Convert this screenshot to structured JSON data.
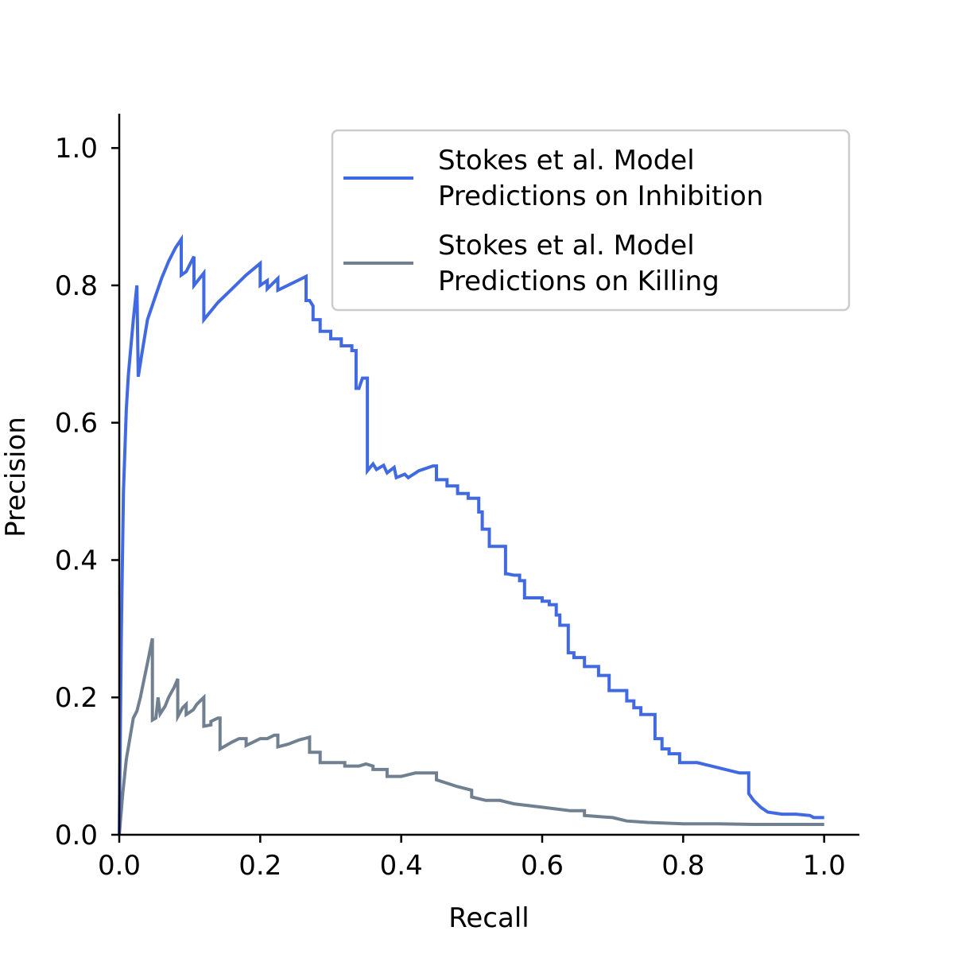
{
  "chart_data": {
    "type": "line",
    "title": "",
    "xlabel": "Recall",
    "ylabel": "Precision",
    "xlim": [
      0.0,
      1.05
    ],
    "ylim": [
      0.0,
      1.05
    ],
    "xticks": [
      "0.0",
      "0.2",
      "0.4",
      "0.6",
      "0.8",
      "1.0"
    ],
    "yticks": [
      "0.0",
      "0.2",
      "0.4",
      "0.6",
      "0.8",
      "1.0"
    ],
    "grid": false,
    "legend": "top-right",
    "series": [
      {
        "name": "Stokes et al. Model\nPredictions on Inhibition",
        "legend_lines": [
          "Stokes et al. Model",
          "Predictions on Inhibition"
        ],
        "color": "#4169e1",
        "points": [
          [
            0.0,
            0.0
          ],
          [
            0.003,
            0.3
          ],
          [
            0.006,
            0.5
          ],
          [
            0.01,
            0.62
          ],
          [
            0.013,
            0.67
          ],
          [
            0.02,
            0.75
          ],
          [
            0.025,
            0.8
          ],
          [
            0.027,
            0.667
          ],
          [
            0.032,
            0.7
          ],
          [
            0.04,
            0.75
          ],
          [
            0.05,
            0.78
          ],
          [
            0.06,
            0.81
          ],
          [
            0.07,
            0.835
          ],
          [
            0.08,
            0.855
          ],
          [
            0.088,
            0.867
          ],
          [
            0.088,
            0.815
          ],
          [
            0.095,
            0.82
          ],
          [
            0.106,
            0.842
          ],
          [
            0.106,
            0.8
          ],
          [
            0.12,
            0.818
          ],
          [
            0.12,
            0.75
          ],
          [
            0.14,
            0.775
          ],
          [
            0.16,
            0.795
          ],
          [
            0.18,
            0.815
          ],
          [
            0.2,
            0.832
          ],
          [
            0.2,
            0.8
          ],
          [
            0.21,
            0.807
          ],
          [
            0.21,
            0.795
          ],
          [
            0.225,
            0.81
          ],
          [
            0.225,
            0.793
          ],
          [
            0.245,
            0.803
          ],
          [
            0.265,
            0.813
          ],
          [
            0.265,
            0.778
          ],
          [
            0.27,
            0.778
          ],
          [
            0.275,
            0.77
          ],
          [
            0.275,
            0.75
          ],
          [
            0.285,
            0.75
          ],
          [
            0.285,
            0.733
          ],
          [
            0.3,
            0.733
          ],
          [
            0.3,
            0.722
          ],
          [
            0.315,
            0.722
          ],
          [
            0.315,
            0.712
          ],
          [
            0.33,
            0.712
          ],
          [
            0.33,
            0.705
          ],
          [
            0.336,
            0.705
          ],
          [
            0.336,
            0.65
          ],
          [
            0.34,
            0.65
          ],
          [
            0.345,
            0.665
          ],
          [
            0.352,
            0.665
          ],
          [
            0.352,
            0.53
          ],
          [
            0.36,
            0.54
          ],
          [
            0.365,
            0.532
          ],
          [
            0.375,
            0.538
          ],
          [
            0.38,
            0.527
          ],
          [
            0.39,
            0.535
          ],
          [
            0.393,
            0.52
          ],
          [
            0.405,
            0.525
          ],
          [
            0.41,
            0.52
          ],
          [
            0.425,
            0.53
          ],
          [
            0.445,
            0.537
          ],
          [
            0.45,
            0.537
          ],
          [
            0.45,
            0.517
          ],
          [
            0.465,
            0.517
          ],
          [
            0.465,
            0.508
          ],
          [
            0.48,
            0.508
          ],
          [
            0.48,
            0.497
          ],
          [
            0.495,
            0.497
          ],
          [
            0.495,
            0.49
          ],
          [
            0.51,
            0.49
          ],
          [
            0.51,
            0.47
          ],
          [
            0.515,
            0.47
          ],
          [
            0.515,
            0.445
          ],
          [
            0.525,
            0.445
          ],
          [
            0.525,
            0.42
          ],
          [
            0.548,
            0.42
          ],
          [
            0.548,
            0.38
          ],
          [
            0.55,
            0.38
          ],
          [
            0.56,
            0.378
          ],
          [
            0.568,
            0.378
          ],
          [
            0.568,
            0.37
          ],
          [
            0.575,
            0.37
          ],
          [
            0.575,
            0.345
          ],
          [
            0.6,
            0.345
          ],
          [
            0.6,
            0.34
          ],
          [
            0.61,
            0.34
          ],
          [
            0.61,
            0.335
          ],
          [
            0.62,
            0.335
          ],
          [
            0.62,
            0.32
          ],
          [
            0.625,
            0.32
          ],
          [
            0.625,
            0.305
          ],
          [
            0.637,
            0.305
          ],
          [
            0.637,
            0.265
          ],
          [
            0.645,
            0.265
          ],
          [
            0.645,
            0.258
          ],
          [
            0.66,
            0.258
          ],
          [
            0.66,
            0.245
          ],
          [
            0.68,
            0.245
          ],
          [
            0.68,
            0.232
          ],
          [
            0.695,
            0.232
          ],
          [
            0.695,
            0.21
          ],
          [
            0.72,
            0.21
          ],
          [
            0.72,
            0.195
          ],
          [
            0.73,
            0.195
          ],
          [
            0.73,
            0.185
          ],
          [
            0.74,
            0.185
          ],
          [
            0.74,
            0.175
          ],
          [
            0.76,
            0.175
          ],
          [
            0.76,
            0.14
          ],
          [
            0.77,
            0.14
          ],
          [
            0.77,
            0.125
          ],
          [
            0.78,
            0.125
          ],
          [
            0.78,
            0.118
          ],
          [
            0.795,
            0.118
          ],
          [
            0.795,
            0.105
          ],
          [
            0.82,
            0.105
          ],
          [
            0.84,
            0.1
          ],
          [
            0.86,
            0.095
          ],
          [
            0.88,
            0.09
          ],
          [
            0.893,
            0.09
          ],
          [
            0.893,
            0.06
          ],
          [
            0.9,
            0.05
          ],
          [
            0.91,
            0.04
          ],
          [
            0.92,
            0.033
          ],
          [
            0.94,
            0.03
          ],
          [
            0.96,
            0.03
          ],
          [
            0.98,
            0.028
          ],
          [
            0.985,
            0.025
          ],
          [
            1.0,
            0.025
          ]
        ]
      },
      {
        "name": "Stokes et al. Model\nPredictions on Killing",
        "legend_lines": [
          "Stokes et al. Model",
          "Predictions on Killing"
        ],
        "color": "#708090",
        "points": [
          [
            0.0,
            0.0
          ],
          [
            0.005,
            0.06
          ],
          [
            0.01,
            0.11
          ],
          [
            0.015,
            0.14
          ],
          [
            0.02,
            0.17
          ],
          [
            0.025,
            0.18
          ],
          [
            0.03,
            0.2
          ],
          [
            0.035,
            0.225
          ],
          [
            0.04,
            0.25
          ],
          [
            0.047,
            0.286
          ],
          [
            0.047,
            0.167
          ],
          [
            0.052,
            0.17
          ],
          [
            0.055,
            0.2
          ],
          [
            0.058,
            0.176
          ],
          [
            0.065,
            0.187
          ],
          [
            0.07,
            0.2
          ],
          [
            0.078,
            0.215
          ],
          [
            0.083,
            0.227
          ],
          [
            0.083,
            0.172
          ],
          [
            0.09,
            0.185
          ],
          [
            0.095,
            0.19
          ],
          [
            0.095,
            0.175
          ],
          [
            0.105,
            0.182
          ],
          [
            0.11,
            0.19
          ],
          [
            0.12,
            0.2
          ],
          [
            0.12,
            0.158
          ],
          [
            0.13,
            0.16
          ],
          [
            0.13,
            0.165
          ],
          [
            0.14,
            0.17
          ],
          [
            0.143,
            0.17
          ],
          [
            0.143,
            0.125
          ],
          [
            0.16,
            0.135
          ],
          [
            0.17,
            0.14
          ],
          [
            0.18,
            0.14
          ],
          [
            0.18,
            0.13
          ],
          [
            0.19,
            0.135
          ],
          [
            0.2,
            0.14
          ],
          [
            0.21,
            0.14
          ],
          [
            0.22,
            0.145
          ],
          [
            0.225,
            0.145
          ],
          [
            0.225,
            0.128
          ],
          [
            0.24,
            0.132
          ],
          [
            0.255,
            0.138
          ],
          [
            0.27,
            0.142
          ],
          [
            0.27,
            0.12
          ],
          [
            0.285,
            0.12
          ],
          [
            0.285,
            0.105
          ],
          [
            0.32,
            0.105
          ],
          [
            0.32,
            0.1
          ],
          [
            0.34,
            0.1
          ],
          [
            0.35,
            0.103
          ],
          [
            0.36,
            0.1
          ],
          [
            0.36,
            0.095
          ],
          [
            0.38,
            0.095
          ],
          [
            0.38,
            0.085
          ],
          [
            0.4,
            0.085
          ],
          [
            0.42,
            0.09
          ],
          [
            0.45,
            0.09
          ],
          [
            0.45,
            0.08
          ],
          [
            0.48,
            0.07
          ],
          [
            0.5,
            0.065
          ],
          [
            0.5,
            0.055
          ],
          [
            0.52,
            0.05
          ],
          [
            0.54,
            0.05
          ],
          [
            0.56,
            0.045
          ],
          [
            0.6,
            0.04
          ],
          [
            0.64,
            0.035
          ],
          [
            0.66,
            0.035
          ],
          [
            0.66,
            0.028
          ],
          [
            0.7,
            0.025
          ],
          [
            0.72,
            0.02
          ],
          [
            0.75,
            0.018
          ],
          [
            0.8,
            0.016
          ],
          [
            0.85,
            0.016
          ],
          [
            0.9,
            0.015
          ],
          [
            0.95,
            0.015
          ],
          [
            1.0,
            0.015
          ]
        ]
      }
    ]
  }
}
